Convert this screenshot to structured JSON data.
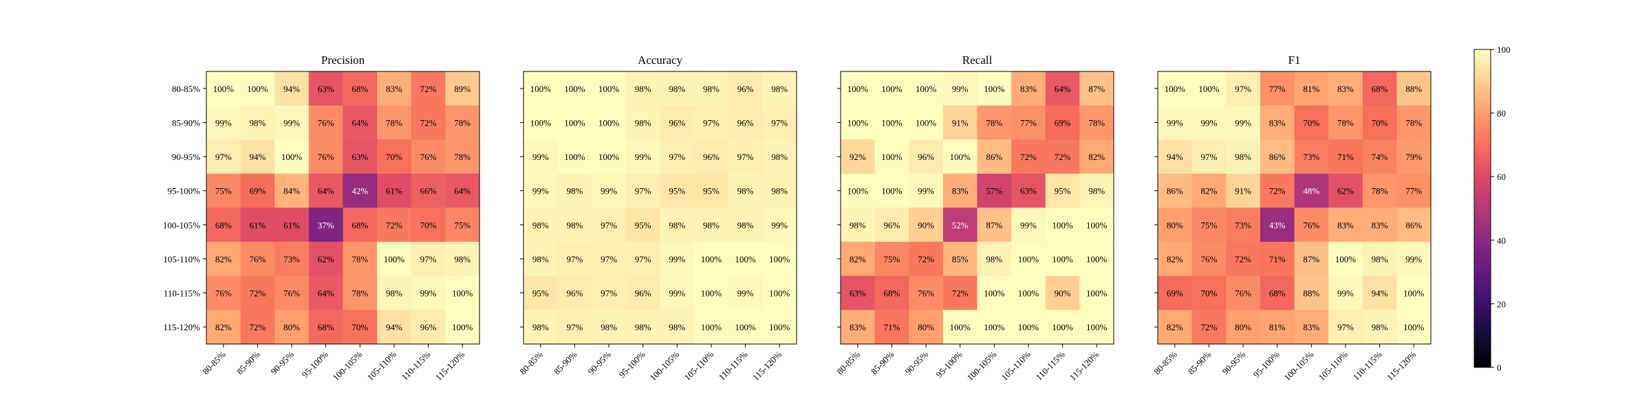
{
  "chart_data": {
    "type": "heatmap",
    "categories": [
      "80-85%",
      "85-90%",
      "90-95%",
      "95-100%",
      "100-105%",
      "105-110%",
      "110-115%",
      "115-120%"
    ],
    "colorbar": {
      "range": [
        0,
        100
      ],
      "ticks": [
        "0",
        "20",
        "40",
        "60",
        "80",
        "100"
      ],
      "colormap": "magma"
    },
    "panels": [
      {
        "title": "Precision",
        "values": [
          [
            100,
            100,
            94,
            63,
            68,
            83,
            72,
            89
          ],
          [
            99,
            98,
            99,
            76,
            64,
            78,
            72,
            78
          ],
          [
            97,
            94,
            100,
            76,
            63,
            70,
            76,
            78
          ],
          [
            75,
            69,
            84,
            64,
            42,
            61,
            66,
            64
          ],
          [
            68,
            61,
            61,
            37,
            68,
            72,
            70,
            75
          ],
          [
            82,
            76,
            73,
            62,
            78,
            100,
            97,
            98
          ],
          [
            76,
            72,
            76,
            64,
            78,
            98,
            99,
            100
          ],
          [
            82,
            72,
            80,
            68,
            70,
            94,
            96,
            100
          ]
        ]
      },
      {
        "title": "Accuracy",
        "values": [
          [
            100,
            100,
            100,
            98,
            98,
            98,
            96,
            98
          ],
          [
            100,
            100,
            100,
            98,
            96,
            97,
            96,
            97
          ],
          [
            99,
            100,
            100,
            99,
            97,
            96,
            97,
            98
          ],
          [
            99,
            98,
            99,
            97,
            95,
            95,
            98,
            98
          ],
          [
            98,
            98,
            97,
            95,
            98,
            98,
            98,
            99
          ],
          [
            98,
            97,
            97,
            97,
            99,
            100,
            100,
            100
          ],
          [
            95,
            96,
            97,
            96,
            99,
            100,
            99,
            100
          ],
          [
            98,
            97,
            98,
            98,
            98,
            100,
            100,
            100
          ]
        ]
      },
      {
        "title": "Recall",
        "values": [
          [
            100,
            100,
            100,
            99,
            100,
            83,
            64,
            87
          ],
          [
            100,
            100,
            100,
            91,
            78,
            77,
            69,
            78
          ],
          [
            92,
            100,
            96,
            100,
            86,
            72,
            72,
            82
          ],
          [
            100,
            100,
            99,
            83,
            57,
            63,
            95,
            98
          ],
          [
            98,
            96,
            90,
            52,
            87,
            99,
            100,
            100
          ],
          [
            82,
            75,
            72,
            85,
            98,
            100,
            100,
            100
          ],
          [
            63,
            68,
            76,
            72,
            100,
            100,
            90,
            100
          ],
          [
            83,
            71,
            80,
            100,
            100,
            100,
            100,
            100
          ]
        ]
      },
      {
        "title": "F1",
        "values": [
          [
            100,
            100,
            97,
            77,
            81,
            83,
            68,
            88
          ],
          [
            99,
            99,
            99,
            83,
            70,
            78,
            70,
            78
          ],
          [
            94,
            97,
            98,
            86,
            73,
            71,
            74,
            79
          ],
          [
            86,
            82,
            91,
            72,
            48,
            62,
            78,
            77
          ],
          [
            80,
            75,
            73,
            43,
            76,
            83,
            83,
            86
          ],
          [
            82,
            76,
            72,
            71,
            87,
            100,
            98,
            99
          ],
          [
            69,
            70,
            76,
            68,
            88,
            99,
            94,
            100
          ],
          [
            82,
            72,
            80,
            81,
            83,
            97,
            98,
            100
          ]
        ]
      }
    ]
  }
}
